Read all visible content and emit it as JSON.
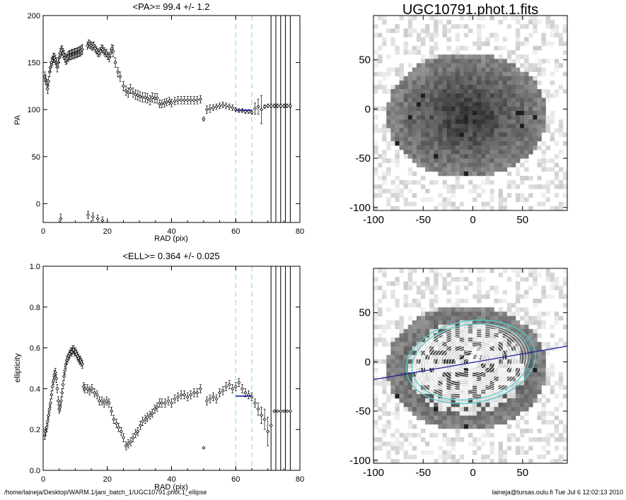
{
  "footer": {
    "left": "/home/laineja/Desktop/WARM.1/jani_batch_1/UGC10791.phot.1_ellipse",
    "right": "laineja@tursas.oulu.fi  Tue Jul  6 12:02:13 2010"
  },
  "colors": {
    "points": "#000000",
    "fit": "#1a1aa0",
    "guides": "#66dddd",
    "ellipse": "#55cccc"
  },
  "image_panels": {
    "title": "UGC10791.phot.1.fits",
    "x_ticks": [
      "-100",
      "-50",
      "0",
      "50"
    ],
    "y_ticks": [
      "50",
      "0",
      "-50",
      "-100"
    ],
    "xlim": [
      -100,
      95
    ],
    "ylim": [
      -103,
      95
    ]
  },
  "chart_data": [
    {
      "type": "scatter",
      "title": "<PA>=  99.4 +/-   1.2",
      "xlabel": "RAD (pix)",
      "ylabel": "PA",
      "xlim": [
        0,
        80
      ],
      "ylim": [
        -20,
        200
      ],
      "x_ticks": [
        0,
        20,
        40,
        60,
        80
      ],
      "y_ticks": [
        0,
        50,
        100,
        150,
        200
      ],
      "mean": 99.4,
      "mean_err": 1.2,
      "fit_range": [
        60,
        65
      ],
      "vertical_lines": [
        71,
        72.5,
        74,
        75.5,
        77
      ],
      "series": [
        {
          "x": [
            0.5,
            0.8,
            1.1,
            1.4,
            1.7,
            2.0,
            2.3,
            2.6,
            2.9,
            3.2,
            3.5,
            3.8,
            4.1,
            4.4,
            4.7,
            5.0,
            5.3,
            5.6,
            5.9,
            6.2,
            6.5,
            6.8,
            7.1,
            7.4,
            7.7,
            8.0,
            8.3,
            8.6,
            8.9,
            9.2,
            9.5,
            9.8,
            10.1,
            10.4,
            10.7,
            11.0,
            11.3,
            11.6,
            11.9,
            12.2,
            13.8,
            14.2,
            14.6,
            15.0,
            15.4,
            15.8,
            16.2,
            16.6,
            17.0,
            17.4,
            17.8,
            18.2,
            18.6,
            19.0,
            19.4,
            19.8,
            20.2,
            20.6,
            21.0,
            21.4,
            21.8,
            22.5,
            23.3,
            24.0,
            25.0,
            25.8,
            26.5,
            27.2,
            28.0,
            28.8,
            29.5,
            30.2,
            31.0,
            31.8,
            32.5,
            33.3,
            34.0,
            34.8,
            35.5,
            36.3,
            37.0,
            37.8,
            38.5,
            39.3,
            40.0,
            41.0,
            42.0,
            43.0,
            44.0,
            45.0,
            46.0,
            47.0,
            48.0,
            49.0,
            50.0,
            51.0,
            52.0,
            53.0,
            54.0,
            55.0,
            56.0,
            57.0,
            58.0,
            59.0,
            60.0,
            61.0,
            62.0,
            63.0,
            64.0,
            65.0,
            66.0,
            67.0,
            68.0,
            69.0,
            70.0,
            71.0,
            72.0,
            73.0,
            74.0,
            75.0,
            76.0,
            77.0,
            5.5,
            14.0,
            15.5,
            17.0,
            18.5
          ],
          "y": [
            135,
            132,
            127,
            122,
            130,
            140,
            145,
            150,
            152,
            155,
            155,
            153,
            150,
            145,
            150,
            155,
            160,
            162,
            163,
            160,
            158,
            155,
            153,
            154,
            156,
            157,
            158,
            158,
            159,
            159,
            159,
            160,
            160,
            160,
            161,
            161,
            162,
            162,
            163,
            164,
            168,
            170,
            169,
            168,
            167,
            168,
            165,
            163,
            161,
            160,
            162,
            165,
            164,
            162,
            160,
            160,
            157,
            155,
            160,
            165,
            162,
            150,
            140,
            135,
            125,
            120,
            118,
            122,
            118,
            116,
            115,
            114,
            113,
            113,
            112,
            110,
            113,
            112,
            112,
            106,
            106,
            107,
            108,
            109,
            107,
            109,
            110,
            110,
            110,
            110,
            110,
            110,
            110,
            111,
            90,
            100,
            101,
            102,
            103,
            104,
            105,
            104,
            103,
            102,
            100,
            99,
            99,
            98,
            98,
            97,
            101,
            103,
            100,
            103,
            104,
            104,
            104,
            104,
            104,
            104,
            104,
            104,
            -16,
            -12,
            -14,
            -16,
            -18
          ],
          "err": [
            5,
            5,
            5,
            5,
            5,
            5,
            5,
            5,
            5,
            5,
            5,
            5,
            5,
            5,
            5,
            5,
            5,
            5,
            5,
            5,
            5,
            5,
            5,
            5,
            5,
            5,
            5,
            5,
            5,
            5,
            5,
            5,
            5,
            5,
            5,
            5,
            5,
            5,
            5,
            5,
            4,
            4,
            4,
            4,
            4,
            4,
            4,
            4,
            4,
            4,
            4,
            4,
            4,
            4,
            4,
            4,
            4,
            4,
            4,
            4,
            6,
            5,
            5,
            5,
            5,
            5,
            5,
            5,
            5,
            5,
            5,
            5,
            5,
            5,
            5,
            5,
            5,
            5,
            5,
            4,
            4,
            4,
            4,
            4,
            4,
            4,
            4,
            4,
            4,
            4,
            4,
            4,
            4,
            4,
            2,
            4,
            4,
            3,
            3,
            3,
            3,
            3,
            3,
            3,
            2,
            2,
            2,
            2,
            2,
            2,
            6,
            8,
            15,
            2,
            2,
            2,
            2,
            2,
            2,
            2,
            2,
            2,
            5,
            4,
            4,
            4,
            4
          ]
        }
      ]
    },
    {
      "type": "scatter",
      "title": "<ELL>= 0.364 +/-  0.025",
      "xlabel": "RAD (pix)",
      "ylabel": "ellipticity",
      "xlim": [
        0,
        80
      ],
      "ylim": [
        0.0,
        1.0
      ],
      "x_ticks": [
        0,
        20,
        40,
        60,
        80
      ],
      "y_ticks": [
        "0.0",
        "0.2",
        "0.4",
        "0.6",
        "0.8",
        "1.0"
      ],
      "mean": 0.364,
      "mean_err": 0.025,
      "fit_range": [
        60,
        65
      ],
      "vertical_lines": [
        71,
        72.5,
        74,
        75.5,
        77
      ],
      "series": [
        {
          "x": [
            0.5,
            0.8,
            1.1,
            1.4,
            1.7,
            2.0,
            2.3,
            2.6,
            2.9,
            3.2,
            3.5,
            3.8,
            4.1,
            4.4,
            4.7,
            5.0,
            5.3,
            5.6,
            5.9,
            6.2,
            6.5,
            6.8,
            7.1,
            7.4,
            7.7,
            8.0,
            8.3,
            8.6,
            8.9,
            9.2,
            9.5,
            9.8,
            10.1,
            10.4,
            10.7,
            11.0,
            11.3,
            11.6,
            11.9,
            12.2,
            12.6,
            13.0,
            13.8,
            14.5,
            15.2,
            16.0,
            16.8,
            17.5,
            18.3,
            19.0,
            19.8,
            20.5,
            21.3,
            22.0,
            22.8,
            23.5,
            24.3,
            25.0,
            25.8,
            26.5,
            27.3,
            28.0,
            28.8,
            29.5,
            30.3,
            31.0,
            31.8,
            32.5,
            33.3,
            34.0,
            34.8,
            35.5,
            36.3,
            37.0,
            38.0,
            39.0,
            40.0,
            41.0,
            42.0,
            43.0,
            44.0,
            45.0,
            46.0,
            47.0,
            48.0,
            49.0,
            50.0,
            51.0,
            52.0,
            53.0,
            54.0,
            55.0,
            56.0,
            57.0,
            58.0,
            59.0,
            60.0,
            61.0,
            62.0,
            63.0,
            64.0,
            65.0,
            66.0,
            67.0,
            68.0,
            69.0,
            70.0,
            71.0,
            72.0,
            73.0,
            74.0,
            75.0,
            76.0,
            77.0
          ],
          "y": [
            0.17,
            0.19,
            0.21,
            0.24,
            0.27,
            0.3,
            0.33,
            0.37,
            0.41,
            0.44,
            0.47,
            0.48,
            0.45,
            0.4,
            0.34,
            0.3,
            0.31,
            0.34,
            0.38,
            0.42,
            0.46,
            0.49,
            0.52,
            0.54,
            0.55,
            0.56,
            0.57,
            0.58,
            0.58,
            0.59,
            0.59,
            0.58,
            0.58,
            0.57,
            0.56,
            0.55,
            0.54,
            0.54,
            0.53,
            0.52,
            0.41,
            0.4,
            0.4,
            0.39,
            0.4,
            0.38,
            0.37,
            0.34,
            0.34,
            0.33,
            0.34,
            0.33,
            0.29,
            0.25,
            0.23,
            0.21,
            0.19,
            0.16,
            0.12,
            0.13,
            0.14,
            0.16,
            0.18,
            0.19,
            0.22,
            0.24,
            0.25,
            0.26,
            0.27,
            0.28,
            0.3,
            0.31,
            0.33,
            0.33,
            0.33,
            0.34,
            0.33,
            0.35,
            0.36,
            0.37,
            0.37,
            0.36,
            0.37,
            0.38,
            0.38,
            0.4,
            0.11,
            0.34,
            0.35,
            0.36,
            0.35,
            0.38,
            0.39,
            0.41,
            0.42,
            0.4,
            0.41,
            0.43,
            0.4,
            0.38,
            0.37,
            0.36,
            0.33,
            0.3,
            0.27,
            0.25,
            0.19,
            0.22,
            0.29,
            0.29,
            0.29,
            0.29,
            0.29,
            0.29
          ],
          "err": [
            0.02,
            0.02,
            0.02,
            0.02,
            0.02,
            0.02,
            0.02,
            0.02,
            0.02,
            0.02,
            0.02,
            0.02,
            0.02,
            0.02,
            0.02,
            0.02,
            0.02,
            0.02,
            0.02,
            0.02,
            0.02,
            0.02,
            0.02,
            0.02,
            0.02,
            0.02,
            0.02,
            0.02,
            0.02,
            0.02,
            0.02,
            0.02,
            0.02,
            0.02,
            0.02,
            0.02,
            0.02,
            0.02,
            0.02,
            0.02,
            0.02,
            0.02,
            0.02,
            0.02,
            0.02,
            0.02,
            0.02,
            0.02,
            0.02,
            0.02,
            0.02,
            0.02,
            0.02,
            0.02,
            0.02,
            0.02,
            0.02,
            0.02,
            0.02,
            0.02,
            0.02,
            0.02,
            0.02,
            0.02,
            0.02,
            0.02,
            0.02,
            0.02,
            0.02,
            0.02,
            0.02,
            0.02,
            0.02,
            0.02,
            0.02,
            0.02,
            0.02,
            0.02,
            0.02,
            0.02,
            0.02,
            0.02,
            0.02,
            0.02,
            0.02,
            0.02,
            0.0,
            0.02,
            0.02,
            0.02,
            0.02,
            0.02,
            0.02,
            0.02,
            0.02,
            0.02,
            0.02,
            0.02,
            0.02,
            0.02,
            0.02,
            0.02,
            0.02,
            0.03,
            0.04,
            0.05,
            0.07,
            0.0,
            0.0,
            0.0,
            0.0,
            0.0,
            0.0,
            0.0
          ]
        }
      ]
    }
  ]
}
